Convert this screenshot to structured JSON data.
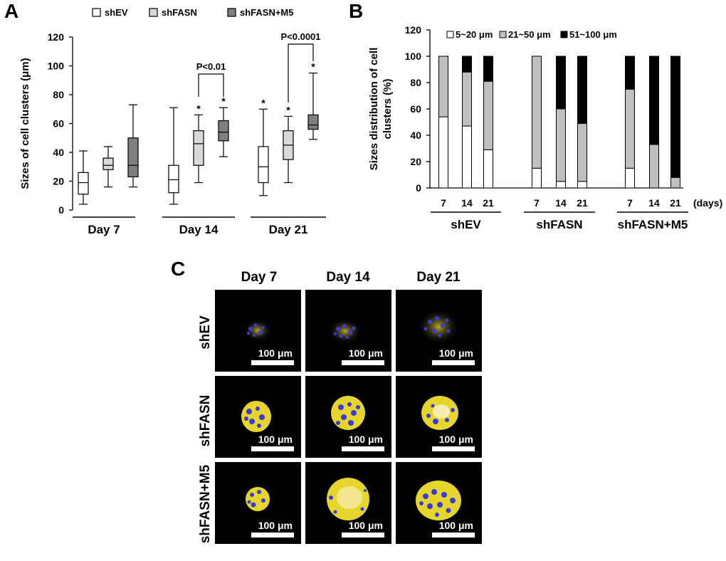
{
  "panel_labels": {
    "a": "A",
    "b": "B",
    "c": "C"
  },
  "colors": {
    "shEV": "#ffffff",
    "shFASN": "#d9d9d9",
    "shFASN_M5": "#7f7f7f",
    "small": "#ffffff",
    "medium": "#bfbfbf",
    "large": "#000000"
  },
  "chart_data": [
    {
      "type": "box",
      "panel": "A",
      "ylabel": "Sizes of cell clusters (μm)",
      "ylim": [
        0,
        120
      ],
      "yticks": [
        "0",
        "20",
        "40",
        "60",
        "80",
        "100",
        "120"
      ],
      "legend": [
        "shEV",
        "shFASN",
        "shFASN+M5"
      ],
      "groups": [
        "Day 7",
        "Day 14",
        "Day 21"
      ],
      "series": [
        {
          "name": "shEV",
          "boxes": [
            {
              "min": 4,
              "q1": 11,
              "median": 19,
              "q3": 26,
              "max": 41
            },
            {
              "min": 4,
              "q1": 12,
              "median": 21,
              "q3": 31,
              "max": 71
            },
            {
              "min": 10,
              "q1": 19,
              "median": 30,
              "q3": 44,
              "max": 70
            }
          ]
        },
        {
          "name": "shFASN",
          "boxes": [
            {
              "min": 16,
              "q1": 28,
              "median": 31,
              "q3": 36,
              "max": 44
            },
            {
              "min": 19,
              "q1": 31,
              "median": 46,
              "q3": 55,
              "max": 66
            },
            {
              "min": 19,
              "q1": 35,
              "median": 45,
              "q3": 55,
              "max": 65
            }
          ]
        },
        {
          "name": "shFASN+M5",
          "boxes": [
            {
              "min": 16,
              "q1": 23,
              "median": 31,
              "q3": 50,
              "max": 73
            },
            {
              "min": 37,
              "q1": 48,
              "median": 54,
              "q3": 62,
              "max": 71
            },
            {
              "min": 49,
              "q1": 56,
              "median": 59,
              "q3": 66,
              "max": 95
            }
          ]
        }
      ],
      "stars": [
        "*",
        "*",
        "*",
        "*",
        "*"
      ],
      "annotations": [
        "P<0.01",
        "P<0.0001"
      ]
    },
    {
      "type": "stacked-bar",
      "panel": "B",
      "ylabel": "Sizes distribution of cell clusters (%)",
      "ylim": [
        0,
        120
      ],
      "yticks": [
        "0",
        "20",
        "40",
        "60",
        "80",
        "100",
        "120"
      ],
      "legend": [
        "5~20 μm",
        "21~50 μm",
        "51~100 μm"
      ],
      "x_unit": "(days)",
      "groups": [
        {
          "name": "shEV",
          "days": [
            "7",
            "14",
            "21"
          ],
          "small": [
            54,
            47,
            29
          ],
          "medium": [
            46,
            41,
            52
          ],
          "large": [
            0,
            12,
            19
          ]
        },
        {
          "name": "shFASN",
          "days": [
            "7",
            "14",
            "21"
          ],
          "small": [
            15,
            5,
            5
          ],
          "medium": [
            85,
            55,
            44
          ],
          "large": [
            0,
            40,
            51
          ]
        },
        {
          "name": "shFASN+M5",
          "days": [
            "7",
            "14",
            "21"
          ],
          "small": [
            15,
            0,
            0
          ],
          "medium": [
            60,
            33,
            8
          ],
          "large": [
            25,
            67,
            92
          ]
        }
      ]
    }
  ],
  "images": {
    "columns": [
      "Day 7",
      "Day 14",
      "Day 21"
    ],
    "rows": [
      "shEV",
      "shFASN",
      "shFASN+M5"
    ],
    "scale_label": "100 μm"
  }
}
